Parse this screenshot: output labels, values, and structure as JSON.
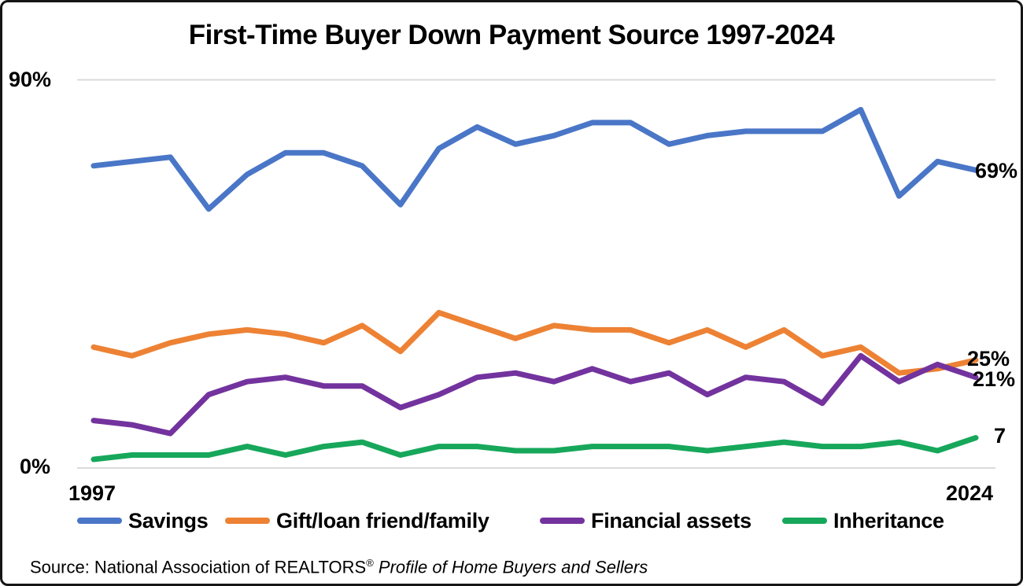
{
  "source": {
    "prefix": "Source: National Association of REALTORS",
    "registered_mark": "®",
    "publication": " Profile of Home Buyers and Sellers"
  },
  "chart_data": {
    "type": "line",
    "title": "First-Time Buyer Down Payment Source 1997-2024",
    "xlabel": "",
    "ylabel": "",
    "ylim": [
      0,
      90
    ],
    "y_ticks_shown": [
      "0%",
      "90%"
    ],
    "x_axis_shown_labels": [
      "1997",
      "2024"
    ],
    "grid": "horizontal gridlines at 0% and 90% only",
    "legend_position": "bottom",
    "x": [
      1997,
      1999,
      2001,
      2003,
      2005,
      2006,
      2007,
      2008,
      2009,
      2010,
      2011,
      2012,
      2013,
      2014,
      2015,
      2016,
      2017,
      2018,
      2019,
      2020,
      2021,
      2022,
      2023,
      2024
    ],
    "series": [
      {
        "name": "Savings",
        "color": "#4A76C7",
        "end_label": "69%",
        "values": [
          70,
          71,
          72,
          60,
          68,
          73,
          73,
          70,
          61,
          74,
          79,
          75,
          77,
          80,
          80,
          75,
          77,
          78,
          78,
          78,
          83,
          63,
          71,
          69
        ]
      },
      {
        "name": "Gift/loan friend/family",
        "color": "#ED8234",
        "end_label": "25%",
        "values": [
          28,
          26,
          29,
          31,
          32,
          31,
          29,
          33,
          27,
          36,
          33,
          30,
          33,
          32,
          32,
          29,
          32,
          28,
          32,
          26,
          28,
          22,
          23,
          25
        ]
      },
      {
        "name": "Financial assets",
        "color": "#73339E",
        "end_label": "21%",
        "values": [
          11,
          10,
          8,
          17,
          20,
          21,
          19,
          19,
          14,
          17,
          21,
          22,
          20,
          23,
          20,
          22,
          17,
          21,
          20,
          15,
          26,
          20,
          24,
          21
        ]
      },
      {
        "name": "Inheritance",
        "color": "#17A75B",
        "end_label": "7",
        "values": [
          2,
          3,
          3,
          3,
          5,
          3,
          5,
          6,
          3,
          5,
          5,
          4,
          4,
          5,
          5,
          5,
          4,
          5,
          6,
          5,
          5,
          6,
          4,
          7
        ]
      }
    ]
  }
}
